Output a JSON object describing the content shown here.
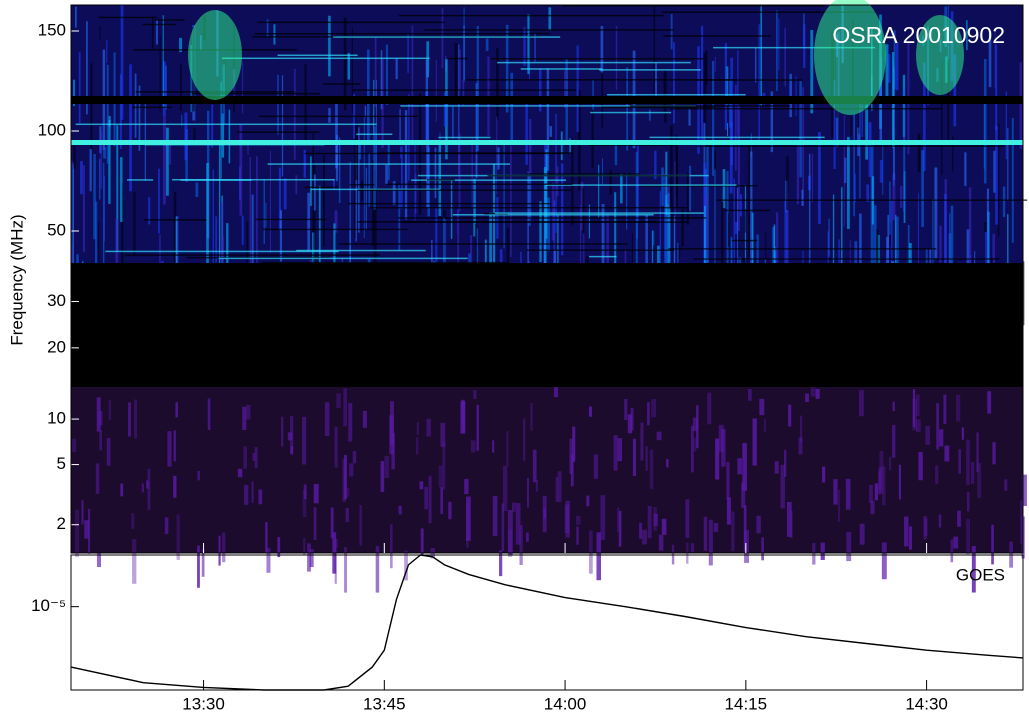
{
  "chart_data": [
    {
      "type": "spectrogram",
      "annotation": "OSRA 20010902",
      "y_label": "Frequency (MHz)",
      "scale": "linear",
      "ylim": [
        34,
        163
      ],
      "yticks": [
        50,
        100,
        150
      ],
      "color": "#1e3cff"
    },
    {
      "type": "spectrogram",
      "scale": "log",
      "ylim": [
        14.2,
        42
      ],
      "yticks": [
        20,
        30
      ],
      "color": "#000000"
    },
    {
      "type": "spectrogram",
      "scale": "log",
      "ylim": [
        1.3,
        16.3
      ],
      "yticks": [
        2,
        5,
        10
      ],
      "color": "#5a1aa8"
    },
    {
      "type": "line",
      "label": "GOES",
      "log_scale": true,
      "color": "#000000",
      "x": [
        "13:19",
        "13:25",
        "13:30",
        "13:35",
        "13:40",
        "13:42",
        "13:44",
        "13:45",
        "13:46",
        "13:47",
        "13:48",
        "13:49",
        "13:50",
        "13:52",
        "13:55",
        "14:00",
        "14:05",
        "14:10",
        "14:15",
        "14:20",
        "14:25",
        "14:30",
        "14:35",
        "14:38"
      ],
      "values": [
        3e-06,
        2.2e-06,
        2e-06,
        1.9e-06,
        1.9e-06,
        2.05e-06,
        3e-06,
        4.2e-06,
        1.15e-05,
        2.3e-05,
        2.8e-05,
        2.7e-05,
        2.3e-05,
        1.9e-05,
        1.55e-05,
        1.2e-05,
        1e-05,
        8.2e-06,
        6.6e-06,
        5.5e-06,
        4.8e-06,
        4.2e-06,
        3.8e-06,
        3.6e-06
      ],
      "xlim": [
        "13:19",
        "14:38"
      ],
      "xticks": [
        "13:30",
        "13:45",
        "14:00",
        "14:15",
        "14:30"
      ],
      "ylim": [
        1.9e-06,
        2.8e-05
      ],
      "yticks": [
        {
          "value": 1e-05,
          "label": "10⁻⁵"
        }
      ]
    }
  ]
}
